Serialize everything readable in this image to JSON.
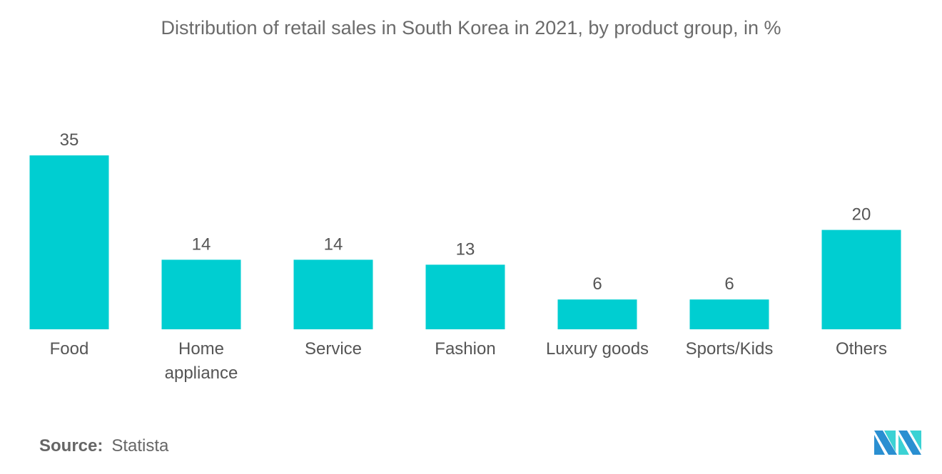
{
  "chart_data": {
    "type": "bar",
    "title": "Distribution of retail sales in South Korea in 2021, by product group, in %",
    "categories": [
      [
        "Food"
      ],
      [
        "Home",
        "appliance"
      ],
      [
        "Service"
      ],
      [
        "Fashion"
      ],
      [
        "Luxury goods"
      ],
      [
        "Sports/Kids"
      ],
      [
        "Others"
      ]
    ],
    "values": [
      35,
      14,
      14,
      13,
      6,
      6,
      20
    ],
    "xlabel": "",
    "ylabel": "",
    "ylim": [
      0,
      35
    ],
    "grid": false,
    "bar_color": "#00ced1"
  },
  "source": {
    "label": "Source:",
    "value": "Statista"
  }
}
